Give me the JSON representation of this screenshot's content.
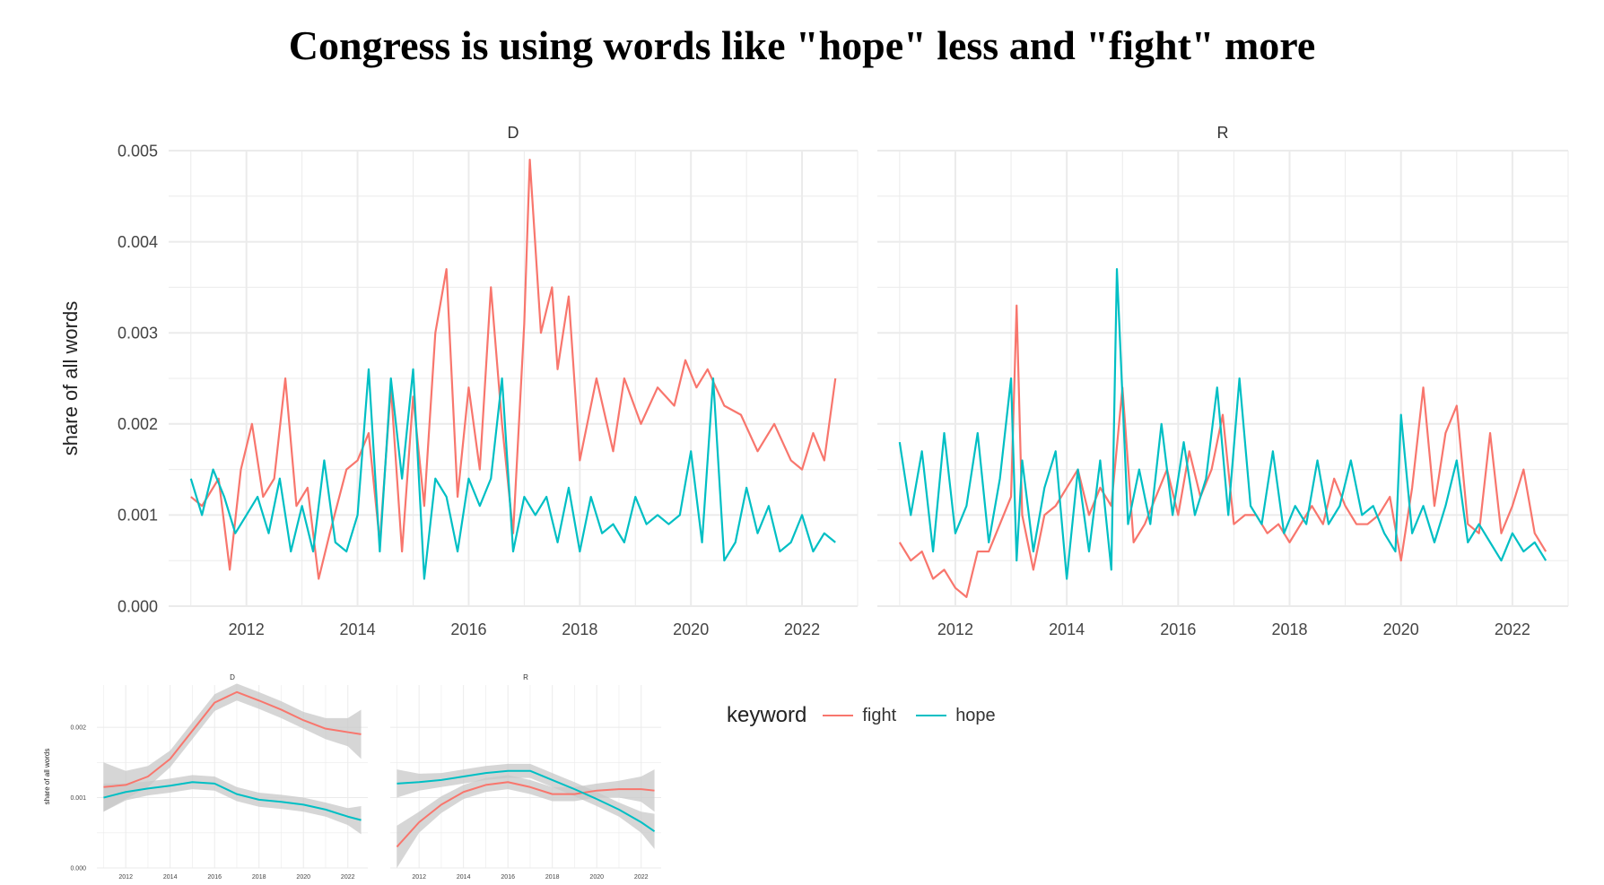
{
  "title": "Congress is using words like \"hope\" less and \"fight\" more",
  "colors": {
    "fight": "#F8766D",
    "hope": "#00BFC4",
    "band": "#C8C8C8",
    "grid": "#EBEBEB"
  },
  "legend": {
    "title": "keyword",
    "items": [
      "fight",
      "hope"
    ]
  },
  "chart_data": [
    {
      "type": "line",
      "facets": [
        "D",
        "R"
      ],
      "ylabel": "share of all words",
      "xlabel": "",
      "xlim": [
        2010.6,
        2023.0
      ],
      "ylim": [
        0,
        0.005
      ],
      "xticks": [
        2012,
        2014,
        2016,
        2018,
        2020,
        2022
      ],
      "yticks": [
        0,
        0.001,
        0.002,
        0.003,
        0.004,
        0.005
      ],
      "ytick_labels": [
        "0.000",
        "0.001",
        "0.002",
        "0.003",
        "0.004",
        "0.005"
      ],
      "grid": true,
      "panels": [
        {
          "facet": "D",
          "series": [
            {
              "name": "fight",
              "x": [
                2011.0,
                2011.2,
                2011.5,
                2011.7,
                2011.9,
                2012.1,
                2012.3,
                2012.5,
                2012.7,
                2012.9,
                2013.1,
                2013.3,
                2013.5,
                2013.8,
                2014.0,
                2014.2,
                2014.4,
                2014.6,
                2014.8,
                2015.0,
                2015.2,
                2015.4,
                2015.6,
                2015.8,
                2016.0,
                2016.2,
                2016.4,
                2016.6,
                2016.8,
                2017.0,
                2017.1,
                2017.3,
                2017.5,
                2017.6,
                2017.8,
                2018.0,
                2018.3,
                2018.6,
                2018.8,
                2019.1,
                2019.4,
                2019.7,
                2019.9,
                2020.1,
                2020.3,
                2020.6,
                2020.9,
                2021.2,
                2021.5,
                2021.8,
                2022.0,
                2022.2,
                2022.4,
                2022.6
              ],
              "y": [
                0.0012,
                0.0011,
                0.0014,
                0.0004,
                0.0015,
                0.002,
                0.0012,
                0.0014,
                0.0025,
                0.0011,
                0.0013,
                0.0003,
                0.0008,
                0.0015,
                0.0016,
                0.0019,
                0.0007,
                0.0024,
                0.0006,
                0.0023,
                0.0011,
                0.003,
                0.0037,
                0.0012,
                0.0024,
                0.0015,
                0.0035,
                0.002,
                0.0008,
                0.0031,
                0.0049,
                0.003,
                0.0035,
                0.0026,
                0.0034,
                0.0016,
                0.0025,
                0.0017,
                0.0025,
                0.002,
                0.0024,
                0.0022,
                0.0027,
                0.0024,
                0.0026,
                0.0022,
                0.0021,
                0.0017,
                0.002,
                0.0016,
                0.0015,
                0.0019,
                0.0016,
                0.0025
              ]
            },
            {
              "name": "hope",
              "x": [
                2011.0,
                2011.2,
                2011.4,
                2011.6,
                2011.8,
                2012.0,
                2012.2,
                2012.4,
                2012.6,
                2012.8,
                2013.0,
                2013.2,
                2013.4,
                2013.6,
                2013.8,
                2014.0,
                2014.2,
                2014.4,
                2014.6,
                2014.8,
                2015.0,
                2015.2,
                2015.4,
                2015.6,
                2015.8,
                2016.0,
                2016.2,
                2016.4,
                2016.6,
                2016.8,
                2017.0,
                2017.2,
                2017.4,
                2017.6,
                2017.8,
                2018.0,
                2018.2,
                2018.4,
                2018.6,
                2018.8,
                2019.0,
                2019.2,
                2019.4,
                2019.6,
                2019.8,
                2020.0,
                2020.2,
                2020.4,
                2020.6,
                2020.8,
                2021.0,
                2021.2,
                2021.4,
                2021.6,
                2021.8,
                2022.0,
                2022.2,
                2022.4,
                2022.6
              ],
              "y": [
                0.0014,
                0.001,
                0.0015,
                0.0012,
                0.0008,
                0.001,
                0.0012,
                0.0008,
                0.0014,
                0.0006,
                0.0011,
                0.0006,
                0.0016,
                0.0007,
                0.0006,
                0.001,
                0.0026,
                0.0006,
                0.0025,
                0.0014,
                0.0026,
                0.0003,
                0.0014,
                0.0012,
                0.0006,
                0.0014,
                0.0011,
                0.0014,
                0.0025,
                0.0006,
                0.0012,
                0.001,
                0.0012,
                0.0007,
                0.0013,
                0.0006,
                0.0012,
                0.0008,
                0.0009,
                0.0007,
                0.0012,
                0.0009,
                0.001,
                0.0009,
                0.001,
                0.0017,
                0.0007,
                0.0025,
                0.0005,
                0.0007,
                0.0013,
                0.0008,
                0.0011,
                0.0006,
                0.0007,
                0.001,
                0.0006,
                0.0008,
                0.0007
              ]
            }
          ]
        },
        {
          "facet": "R",
          "series": [
            {
              "name": "fight",
              "x": [
                2011.0,
                2011.2,
                2011.4,
                2011.6,
                2011.8,
                2012.0,
                2012.2,
                2012.4,
                2012.6,
                2012.8,
                2013.0,
                2013.1,
                2013.2,
                2013.4,
                2013.6,
                2013.8,
                2014.0,
                2014.2,
                2014.4,
                2014.6,
                2014.8,
                2015.0,
                2015.2,
                2015.4,
                2015.6,
                2015.8,
                2016.0,
                2016.2,
                2016.4,
                2016.6,
                2016.8,
                2017.0,
                2017.2,
                2017.4,
                2017.6,
                2017.8,
                2018.0,
                2018.2,
                2018.4,
                2018.6,
                2018.8,
                2019.0,
                2019.2,
                2019.4,
                2019.6,
                2019.8,
                2020.0,
                2020.2,
                2020.4,
                2020.6,
                2020.8,
                2021.0,
                2021.2,
                2021.4,
                2021.6,
                2021.8,
                2022.0,
                2022.2,
                2022.4,
                2022.6
              ],
              "y": [
                0.0007,
                0.0005,
                0.0006,
                0.0003,
                0.0004,
                0.0002,
                0.0001,
                0.0006,
                0.0006,
                0.0009,
                0.0012,
                0.0033,
                0.001,
                0.0004,
                0.001,
                0.0011,
                0.0013,
                0.0015,
                0.001,
                0.0013,
                0.0011,
                0.0024,
                0.0007,
                0.0009,
                0.0012,
                0.0015,
                0.001,
                0.0017,
                0.0012,
                0.0015,
                0.0021,
                0.0009,
                0.001,
                0.001,
                0.0008,
                0.0009,
                0.0007,
                0.0009,
                0.0011,
                0.0009,
                0.0014,
                0.0011,
                0.0009,
                0.0009,
                0.001,
                0.0012,
                0.0005,
                0.0013,
                0.0024,
                0.0011,
                0.0019,
                0.0022,
                0.0009,
                0.0008,
                0.0019,
                0.0008,
                0.0011,
                0.0015,
                0.0008,
                0.0006
              ]
            },
            {
              "name": "hope",
              "x": [
                2011.0,
                2011.2,
                2011.4,
                2011.6,
                2011.8,
                2012.0,
                2012.2,
                2012.4,
                2012.6,
                2012.8,
                2013.0,
                2013.1,
                2013.2,
                2013.4,
                2013.6,
                2013.8,
                2014.0,
                2014.2,
                2014.4,
                2014.6,
                2014.8,
                2014.9,
                2015.1,
                2015.3,
                2015.5,
                2015.7,
                2015.9,
                2016.1,
                2016.3,
                2016.5,
                2016.7,
                2016.9,
                2017.1,
                2017.3,
                2017.5,
                2017.7,
                2017.9,
                2018.1,
                2018.3,
                2018.5,
                2018.7,
                2018.9,
                2019.1,
                2019.3,
                2019.5,
                2019.7,
                2019.9,
                2020.0,
                2020.2,
                2020.4,
                2020.6,
                2020.8,
                2021.0,
                2021.2,
                2021.4,
                2021.6,
                2021.8,
                2022.0,
                2022.2,
                2022.4,
                2022.6
              ],
              "y": [
                0.0018,
                0.001,
                0.0017,
                0.0006,
                0.0019,
                0.0008,
                0.0011,
                0.0019,
                0.0007,
                0.0014,
                0.0025,
                0.0005,
                0.0016,
                0.0006,
                0.0013,
                0.0017,
                0.0003,
                0.0015,
                0.0006,
                0.0016,
                0.0004,
                0.0037,
                0.0009,
                0.0015,
                0.0009,
                0.002,
                0.001,
                0.0018,
                0.001,
                0.0014,
                0.0024,
                0.001,
                0.0025,
                0.0011,
                0.0009,
                0.0017,
                0.0008,
                0.0011,
                0.0009,
                0.0016,
                0.0009,
                0.0011,
                0.0016,
                0.001,
                0.0011,
                0.0008,
                0.0006,
                0.0021,
                0.0008,
                0.0011,
                0.0007,
                0.0011,
                0.0016,
                0.0007,
                0.0009,
                0.0007,
                0.0005,
                0.0008,
                0.0006,
                0.0007,
                0.0005
              ]
            }
          ]
        }
      ]
    },
    {
      "type": "line",
      "facets": [
        "D",
        "R"
      ],
      "ylabel": "share of all words",
      "xlim": [
        2010.7,
        2022.9
      ],
      "ylim": [
        0,
        0.0026
      ],
      "xticks": [
        2012,
        2014,
        2016,
        2018,
        2020,
        2022
      ],
      "yticks": [
        0,
        0.001,
        0.002
      ],
      "ytick_labels": [
        "0.000",
        "0.001",
        "0.002"
      ],
      "grid": true,
      "smoothed": true,
      "panels": [
        {
          "facet": "D",
          "series": [
            {
              "name": "fight",
              "x": [
                2011,
                2012,
                2013,
                2014,
                2015,
                2016,
                2017,
                2018,
                2019,
                2020,
                2021,
                2022,
                2022.6
              ],
              "y": [
                0.00115,
                0.00118,
                0.0013,
                0.00155,
                0.00195,
                0.00235,
                0.0025,
                0.00238,
                0.00225,
                0.0021,
                0.00198,
                0.00193,
                0.0019
              ],
              "band": [
                0.00035,
                0.0002,
                0.00015,
                0.00012,
                0.00012,
                0.00012,
                0.00012,
                0.00012,
                0.00012,
                0.00012,
                0.00015,
                0.0002,
                0.00035
              ]
            },
            {
              "name": "hope",
              "x": [
                2011,
                2012,
                2013,
                2014,
                2015,
                2016,
                2017,
                2018,
                2019,
                2020,
                2021,
                2022,
                2022.6
              ],
              "y": [
                0.001,
                0.00108,
                0.00113,
                0.00117,
                0.00122,
                0.0012,
                0.00105,
                0.00097,
                0.00094,
                0.0009,
                0.00083,
                0.00073,
                0.00068
              ],
              "band": [
                0.0002,
                0.00012,
                0.0001,
                0.0001,
                0.0001,
                0.0001,
                0.0001,
                0.0001,
                0.0001,
                0.0001,
                0.0001,
                0.00012,
                0.0002
              ]
            }
          ]
        },
        {
          "facet": "R",
          "series": [
            {
              "name": "fight",
              "x": [
                2011,
                2012,
                2013,
                2014,
                2015,
                2016,
                2017,
                2018,
                2019,
                2020,
                2021,
                2022,
                2022.6
              ],
              "y": [
                0.0003,
                0.00065,
                0.0009,
                0.00108,
                0.00118,
                0.00122,
                0.00115,
                0.00105,
                0.00105,
                0.0011,
                0.00112,
                0.00112,
                0.0011
              ],
              "band": [
                0.0003,
                0.00015,
                0.00012,
                0.0001,
                0.0001,
                0.0001,
                0.0001,
                0.0001,
                0.0001,
                0.0001,
                0.00012,
                0.00018,
                0.0003
              ]
            },
            {
              "name": "hope",
              "x": [
                2011,
                2012,
                2013,
                2014,
                2015,
                2016,
                2017,
                2018,
                2019,
                2020,
                2021,
                2022,
                2022.6
              ],
              "y": [
                0.0012,
                0.00122,
                0.00125,
                0.0013,
                0.00135,
                0.00138,
                0.00138,
                0.00125,
                0.00112,
                0.00098,
                0.00083,
                0.00065,
                0.00052
              ],
              "band": [
                0.0002,
                0.00012,
                0.0001,
                0.0001,
                0.0001,
                0.0001,
                0.0001,
                0.0001,
                0.0001,
                0.0001,
                0.0001,
                0.00015,
                0.00025
              ]
            }
          ]
        }
      ]
    }
  ]
}
